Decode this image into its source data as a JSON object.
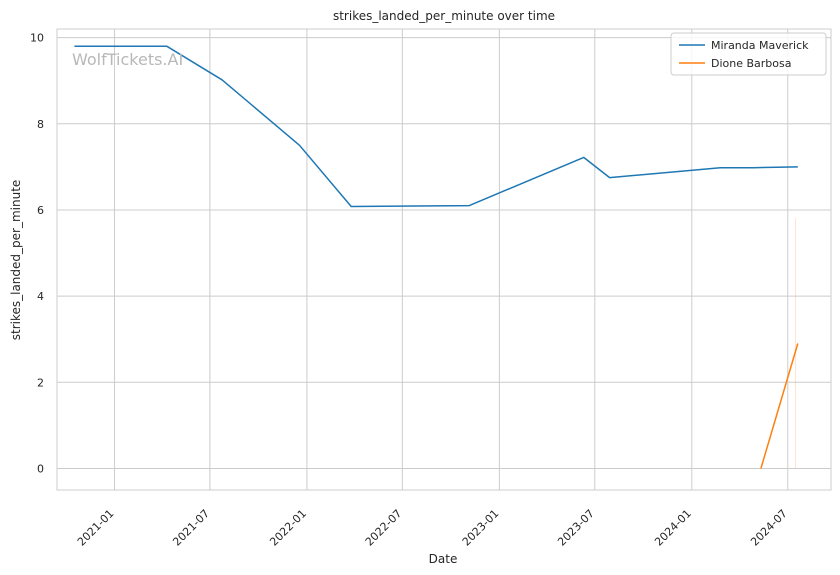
{
  "chart_data": {
    "type": "line",
    "title": "strikes_landed_per_minute over time",
    "xlabel": "Date",
    "ylabel": "strikes_landed_per_minute",
    "watermark": "WolfTickets.AI",
    "x_ticks": [
      "2021-01",
      "2021-07",
      "2022-01",
      "2022-07",
      "2023-01",
      "2023-07",
      "2024-01",
      "2024-07"
    ],
    "y_ticks": [
      0,
      2,
      4,
      6,
      8,
      10
    ],
    "xlim": [
      "2020-09-14",
      "2024-09-21"
    ],
    "ylim": [
      -0.5,
      10.2
    ],
    "grid": true,
    "legend_position": "top-right",
    "series": [
      {
        "name": "Miranda Maverick",
        "color": "#1f77b4",
        "points": [
          {
            "x": "2020-10-17",
            "y": 9.8
          },
          {
            "x": "2021-04-10",
            "y": 9.8
          },
          {
            "x": "2021-07-24",
            "y": 9.02
          },
          {
            "x": "2021-12-18",
            "y": 7.5
          },
          {
            "x": "2022-03-26",
            "y": 6.08
          },
          {
            "x": "2022-11-05",
            "y": 6.1
          },
          {
            "x": "2023-06-10",
            "y": 7.22
          },
          {
            "x": "2023-07-29",
            "y": 6.75
          },
          {
            "x": "2024-02-24",
            "y": 6.98
          },
          {
            "x": "2024-04-27",
            "y": 6.98
          },
          {
            "x": "2024-07-20",
            "y": 7.0
          }
        ]
      },
      {
        "name": "Dione Barbosa",
        "color": "#ff7f0e",
        "points": [
          {
            "x": "2024-05-11",
            "y": 0.0
          },
          {
            "x": "2024-07-20",
            "y": 2.9
          }
        ]
      }
    ]
  }
}
